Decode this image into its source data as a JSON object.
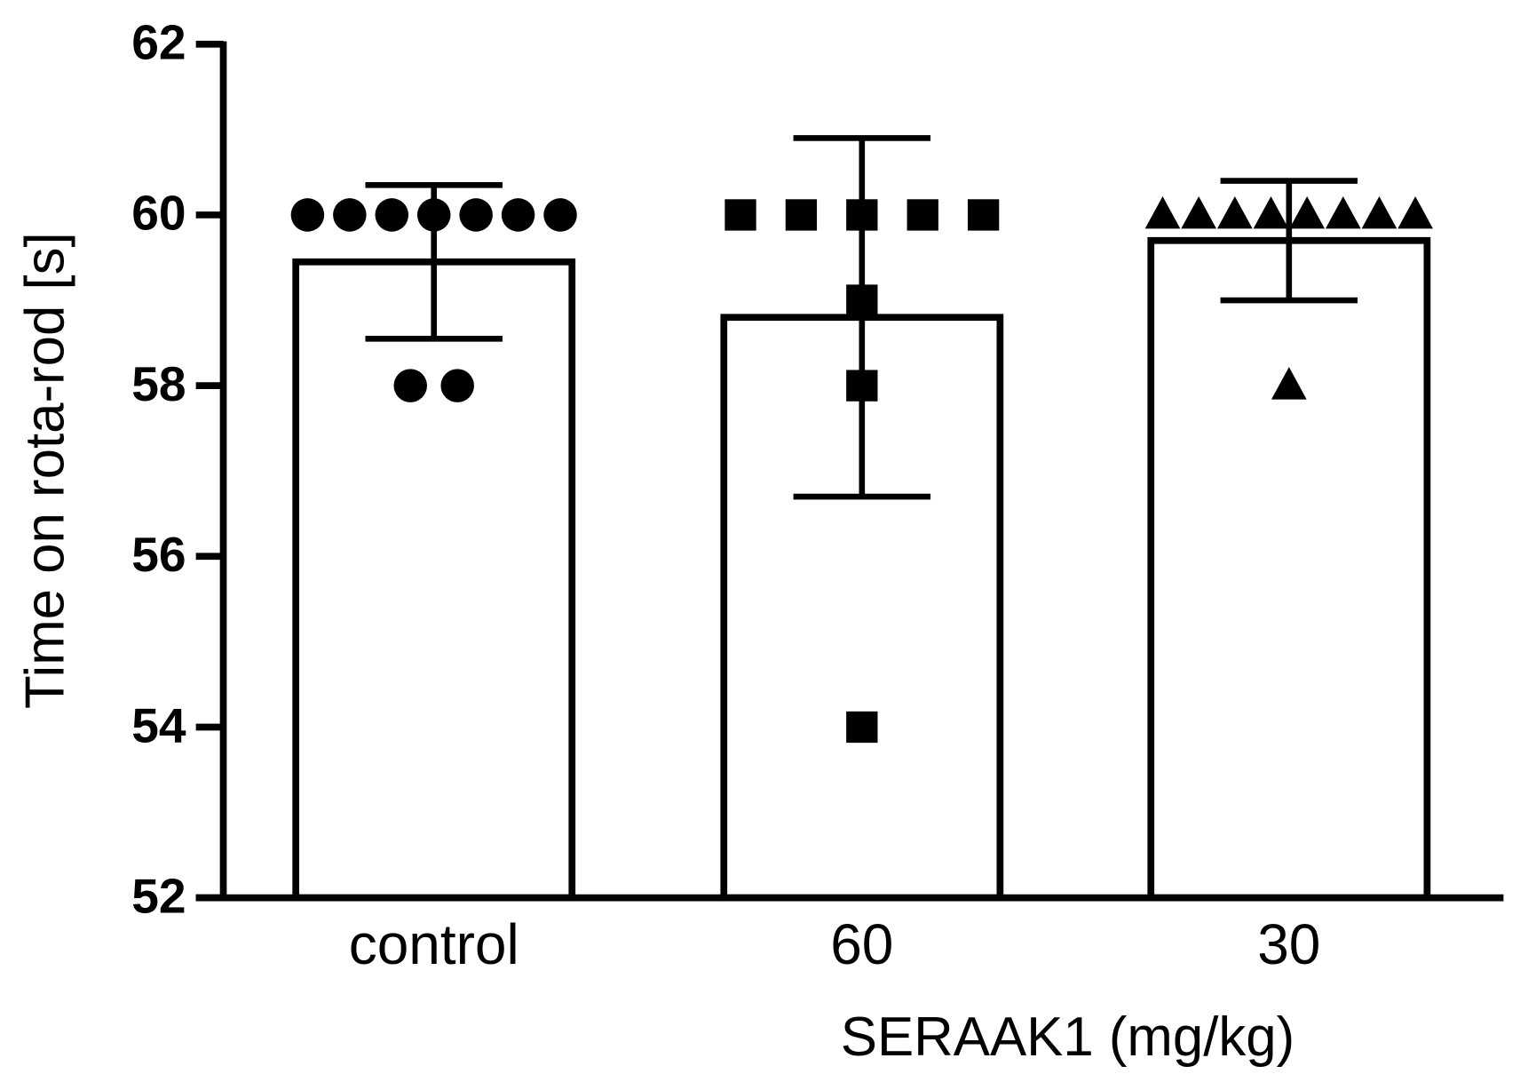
{
  "chart_data": {
    "type": "bar",
    "y_label": "Time on rota-rod [s]",
    "x_label": "SERAAK1 (mg/kg)",
    "categories": [
      "control",
      "60",
      "30"
    ],
    "values": [
      59.45,
      58.8,
      59.7
    ],
    "errors": [
      0.9,
      2.1,
      0.7
    ],
    "points": [
      [
        60,
        60,
        60,
        60,
        60,
        60,
        60,
        58,
        58
      ],
      [
        60,
        60,
        60,
        60,
        60,
        59,
        58,
        54
      ],
      [
        60,
        60,
        60,
        60,
        60,
        60,
        60,
        60,
        58
      ]
    ],
    "markers": [
      "circle",
      "square",
      "triangle"
    ],
    "color": "#000000",
    "bar_fill": "#ffffff",
    "ylim": [
      52,
      62
    ],
    "yticks": [
      52,
      54,
      56,
      58,
      60,
      62
    ],
    "grid": false
  }
}
